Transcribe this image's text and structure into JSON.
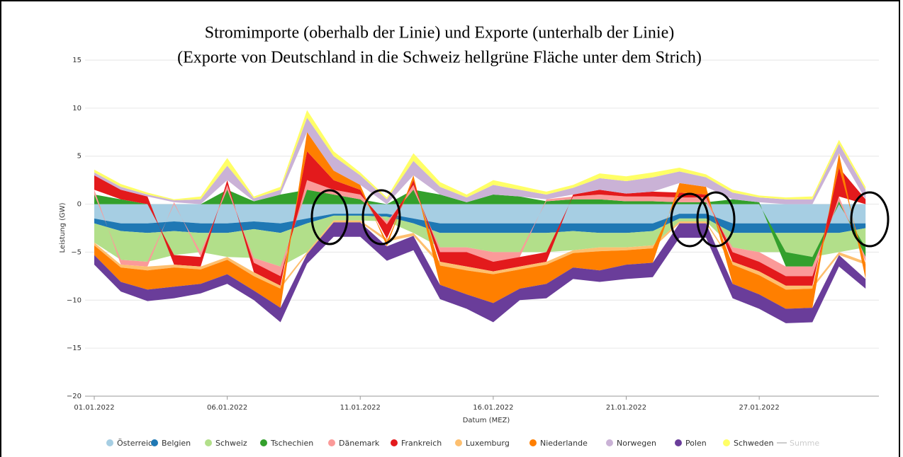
{
  "chart_data": {
    "type": "stacked_area",
    "title": [
      "Stromimporte (oberhalb der Linie) und Exporte (unterhalb der Linie)",
      "(Exporte von Deutschland in die Schweiz hellgrüne Fläche unter dem Strich)"
    ],
    "x_label": "Datum (MEZ)",
    "y_label": "Leistung (GW)",
    "x": [
      0,
      1,
      2,
      3,
      4,
      5,
      6,
      7,
      8,
      9,
      10,
      11,
      12,
      13,
      14,
      15,
      16,
      17,
      18,
      19,
      20,
      21,
      22,
      23,
      24,
      25,
      26,
      27,
      28,
      29
    ],
    "xlim": [
      0,
      29.5
    ],
    "xticks": [
      {
        "value": 0,
        "label": "01.01.2022"
      },
      {
        "value": 5,
        "label": "06.01.2022"
      },
      {
        "value": 10,
        "label": "11.01.2022"
      },
      {
        "value": 15,
        "label": "16.01.2022"
      },
      {
        "value": 20,
        "label": "21.01.2022"
      },
      {
        "value": 25,
        "label": "27.01.2022"
      }
    ],
    "ylim": [
      -20,
      15
    ],
    "yticks": [
      {
        "value": -20,
        "label": "−20"
      },
      {
        "value": -15,
        "label": "−15"
      },
      {
        "value": -10,
        "label": "−10"
      },
      {
        "value": -5,
        "label": "−5"
      },
      0,
      5,
      10,
      15
    ],
    "grid": true,
    "series": [
      {
        "name": "Österreich",
        "color": "#a6cee3",
        "values": [
          -1.5,
          -2,
          -2,
          -1.8,
          -2,
          -2,
          -1.8,
          -2,
          -1.5,
          -1,
          -1,
          -1,
          -1.5,
          -2,
          -2,
          -2,
          -2,
          -2,
          -2,
          -2,
          -2,
          -2,
          -1,
          -1,
          -2,
          -2,
          -2,
          -2,
          -2,
          -2
        ]
      },
      {
        "name": "Belgien",
        "color": "#1f78b4",
        "values": [
          -0.5,
          -0.8,
          -1,
          -1,
          -1,
          -1,
          -0.8,
          -1,
          -0.5,
          -0.2,
          -0.2,
          -0.3,
          -0.5,
          -1,
          -1,
          -1,
          -1,
          -1,
          -0.8,
          -1,
          -1,
          -0.8,
          -0.5,
          -0.5,
          -1,
          -1,
          -1,
          -1,
          -1,
          -0.5
        ]
      },
      {
        "name": "Schweiz",
        "color": "#b2df8a",
        "values": [
          -2,
          -3,
          -3,
          -2.5,
          -2,
          -2.5,
          -3,
          -3.5,
          -3,
          -0.5,
          -0.5,
          -0.5,
          -1,
          -1.5,
          -1.5,
          -2,
          -2,
          -2,
          -2,
          -1.5,
          -1.5,
          -1.5,
          -0.3,
          -0.3,
          -1.5,
          -2,
          -2,
          -2.5,
          -2,
          -2
        ]
      },
      {
        "name": "Tschechien",
        "color": "#33a02c",
        "values": [
          1,
          0.5,
          0,
          0,
          0,
          1.5,
          0.3,
          1,
          1.5,
          1,
          0.5,
          0,
          1.5,
          1,
          0.2,
          1,
          0.8,
          0.3,
          0.5,
          0.5,
          0.3,
          0.3,
          0.2,
          0.2,
          0.5,
          0.2,
          -1.5,
          -1,
          0.3,
          -1
        ]
      },
      {
        "name": "Dänemark",
        "color": "#fb9a99",
        "values": [
          0.5,
          -0.5,
          -0.5,
          0.2,
          -0.5,
          0.5,
          -0.5,
          -1,
          1,
          0.5,
          0.5,
          -0.3,
          0.5,
          -0.5,
          -0.5,
          -1,
          -0.5,
          0.2,
          0.3,
          0.5,
          0.5,
          0.5,
          0.5,
          0.5,
          -0.5,
          -1,
          -1,
          -1,
          0.5,
          -0.5
        ]
      },
      {
        "name": "Frankreich",
        "color": "#e31a1c",
        "values": [
          1.5,
          1,
          0.8,
          -1,
          -1,
          0.5,
          -1,
          -1,
          3,
          1,
          0.5,
          -1.5,
          0.5,
          -1,
          -1.5,
          -1,
          -1,
          -1,
          0.2,
          0.5,
          0.3,
          0.5,
          0.5,
          0.3,
          -1,
          -1,
          -1,
          -1,
          3,
          0.5
        ]
      },
      {
        "name": "Luxemburg",
        "color": "#fdbf6f",
        "values": [
          -0.3,
          -0.3,
          -0.4,
          -0.3,
          -0.3,
          -0.3,
          -0.4,
          -0.3,
          -0.2,
          -0.2,
          -0.2,
          -0.3,
          -0.3,
          -0.4,
          -0.4,
          -0.3,
          -0.3,
          -0.3,
          -0.3,
          -0.4,
          -0.3,
          -0.3,
          -0.2,
          -0.2,
          -0.3,
          -0.4,
          -0.4,
          -0.3,
          -0.3,
          -0.3
        ]
      },
      {
        "name": "Niederlande",
        "color": "#ff7f00",
        "values": [
          -1,
          -1.5,
          -2,
          -2,
          -1.5,
          -1.5,
          -1.5,
          -2,
          2,
          1,
          0.5,
          -0.5,
          0.5,
          -2,
          -2.5,
          -3,
          -2,
          -2,
          -1.5,
          -2,
          -1.5,
          -1.5,
          1,
          0.8,
          -2,
          -2,
          -2,
          -2,
          1.5,
          -1.5
        ]
      },
      {
        "name": "Norwegen",
        "color": "#cab2d6",
        "values": [
          0.3,
          0.3,
          0.2,
          0.2,
          0.5,
          1.5,
          0.3,
          0.5,
          1.5,
          1.5,
          1,
          0.5,
          1.5,
          0.8,
          0.5,
          1,
          0.7,
          0.5,
          0.7,
          1.2,
          1.3,
          1.5,
          1.2,
          1,
          0.7,
          0.5,
          0.5,
          0.5,
          1,
          1
        ]
      },
      {
        "name": "Polen",
        "color": "#6a3d9a",
        "values": [
          -1,
          -1,
          -1.2,
          -1.2,
          -1,
          -1,
          -1,
          -1.5,
          -1,
          -1.5,
          -1.5,
          -1.5,
          -1.5,
          -1.5,
          -1.5,
          -2,
          -1.2,
          -1.5,
          -1.2,
          -1.2,
          -1.5,
          -1.5,
          -1.5,
          -1.5,
          -1.5,
          -1.5,
          -1.5,
          -1.5,
          -1.2,
          -1
        ]
      },
      {
        "name": "Schweden",
        "color": "#ffff66",
        "values": [
          0.3,
          0.3,
          0.2,
          0.1,
          0.3,
          0.8,
          0.2,
          0.3,
          0.8,
          0.5,
          0.3,
          0.2,
          0.8,
          0.5,
          0.3,
          0.5,
          0.4,
          0.3,
          0.3,
          0.5,
          0.5,
          0.5,
          0.4,
          0.3,
          0.3,
          0.2,
          0.2,
          0.3,
          0.4,
          0.3
        ]
      }
    ],
    "legend_extra": [
      {
        "name": "Summe",
        "color": "#cccccc"
      }
    ]
  }
}
